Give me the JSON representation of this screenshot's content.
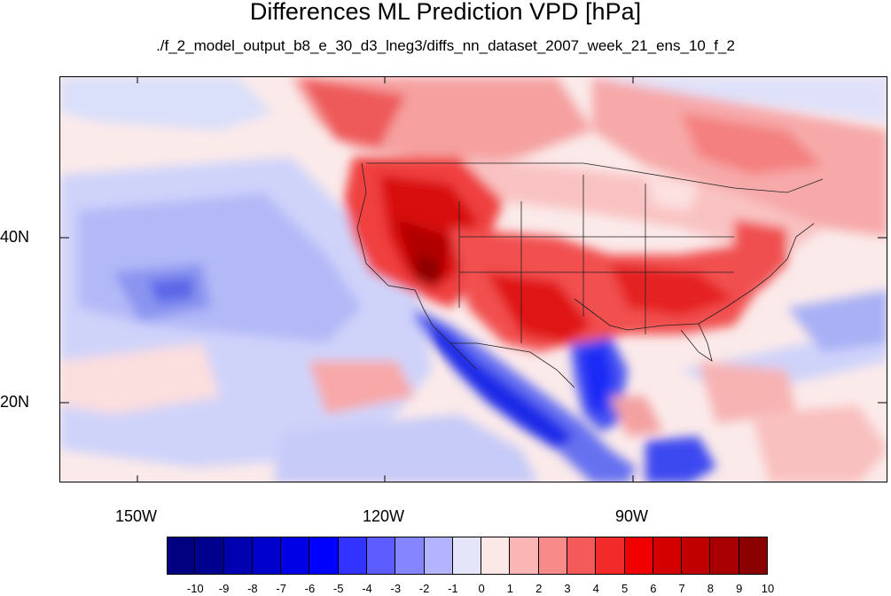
{
  "title": "Differences ML Prediction VPD [hPa]",
  "subtitle": "./f_2_model_output_b8_e_30_d3_lneg3/diffs_nn_dataset_2007_week_21_ens_10_f_2",
  "lat_labels": [
    "40N",
    "20N"
  ],
  "lon_labels": [
    "150W",
    "120W",
    "90W"
  ],
  "colorbar": {
    "labels": [
      "-10",
      "-9",
      "-8",
      "-7",
      "-6",
      "-5",
      "-4",
      "-3",
      "-2",
      "-1",
      "0",
      "1",
      "2",
      "3",
      "4",
      "5",
      "6",
      "7",
      "8",
      "9",
      "10"
    ],
    "colors": [
      "#000080",
      "#00008f",
      "#0000b0",
      "#0000cc",
      "#0000e6",
      "#0000ff",
      "#3333ff",
      "#5c5cff",
      "#8585ff",
      "#b3b3ff",
      "#e5e5fa",
      "#fde8e8",
      "#fbb5b5",
      "#f88a8a",
      "#f45a5a",
      "#f22a2a",
      "#f00000",
      "#d40000",
      "#c00000",
      "#a80000",
      "#8b0000"
    ]
  }
}
